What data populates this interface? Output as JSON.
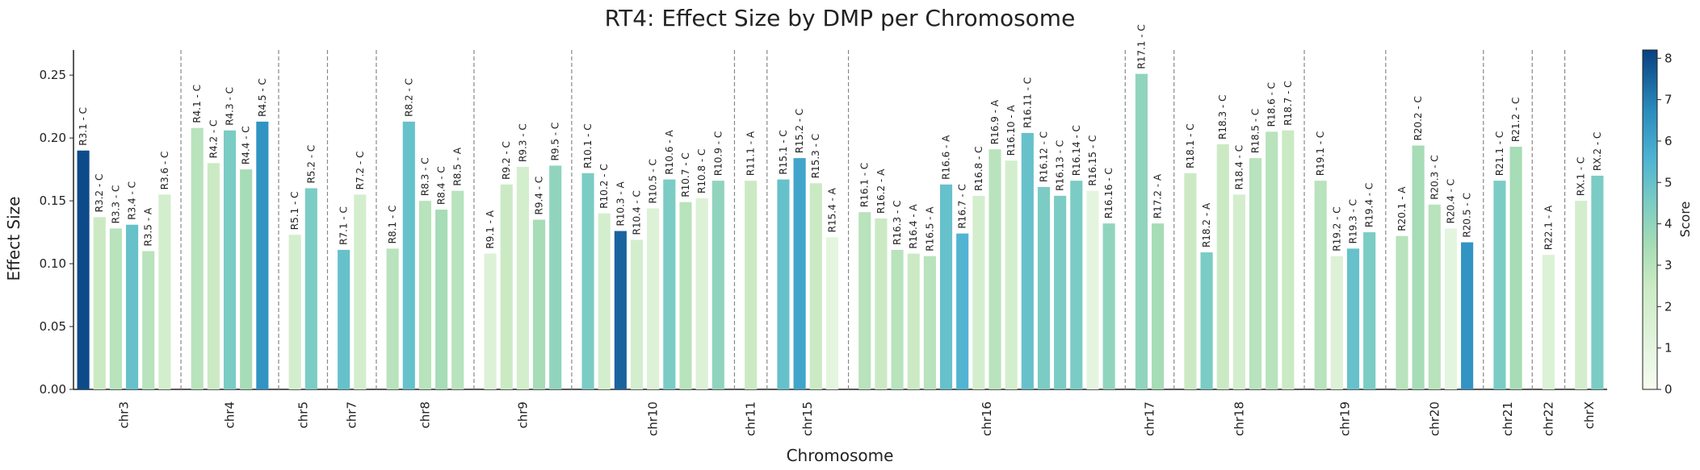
{
  "chart_data": {
    "type": "bar",
    "title": "RT4: Effect Size by DMP per Chromosome",
    "xlabel": "Chromosome",
    "ylabel": "Effect Size",
    "ylim": [
      0,
      0.27
    ],
    "yticks": [
      0.0,
      0.05,
      0.1,
      0.15,
      0.2,
      0.25
    ],
    "colorbar": {
      "label": "Score",
      "range": [
        0,
        8.2
      ],
      "ticks": [
        0,
        1,
        2,
        3,
        4,
        5,
        6,
        7,
        8
      ]
    },
    "groups": [
      {
        "chrom": "chr3",
        "bars": [
          {
            "label": "R3.1 - C",
            "value": 0.19,
            "score": 8
          },
          {
            "label": "R3.2 - C",
            "value": 0.137,
            "score": 2.5
          },
          {
            "label": "R3.3 - C",
            "value": 0.128,
            "score": 3
          },
          {
            "label": "R3.4 - C",
            "value": 0.131,
            "score": 5
          },
          {
            "label": "R3.5 - A",
            "value": 0.11,
            "score": 3
          },
          {
            "label": "R3.6 - C",
            "value": 0.155,
            "score": 2
          }
        ]
      },
      {
        "chrom": "chr4",
        "bars": [
          {
            "label": "R4.1 - C",
            "value": 0.208,
            "score": 3
          },
          {
            "label": "R4.2 - C",
            "value": 0.18,
            "score": 2.5
          },
          {
            "label": "R4.3 - C",
            "value": 0.206,
            "score": 4.5
          },
          {
            "label": "R4.4 - C",
            "value": 0.175,
            "score": 3.5
          },
          {
            "label": "R4.5 - C",
            "value": 0.213,
            "score": 6.5
          }
        ]
      },
      {
        "chrom": "chr5",
        "bars": [
          {
            "label": "R5.1 - C",
            "value": 0.123,
            "score": 2
          },
          {
            "label": "R5.2 - C",
            "value": 0.16,
            "score": 4.5
          }
        ]
      },
      {
        "chrom": "chr7",
        "bars": [
          {
            "label": "R7.1 - C",
            "value": 0.111,
            "score": 5
          },
          {
            "label": "R7.2 - C",
            "value": 0.155,
            "score": 2
          }
        ]
      },
      {
        "chrom": "chr8",
        "bars": [
          {
            "label": "R8.1 - C",
            "value": 0.112,
            "score": 3
          },
          {
            "label": "R8.2 - C",
            "value": 0.213,
            "score": 5
          },
          {
            "label": "R8.3 - C",
            "value": 0.15,
            "score": 3
          },
          {
            "label": "R8.4 - C",
            "value": 0.143,
            "score": 3.5
          },
          {
            "label": "R8.5 - A",
            "value": 0.158,
            "score": 3
          }
        ]
      },
      {
        "chrom": "chr9",
        "bars": [
          {
            "label": "R9.1 - A",
            "value": 0.108,
            "score": 1.5
          },
          {
            "label": "R9.2 - C",
            "value": 0.163,
            "score": 2.5
          },
          {
            "label": "R9.3 - C",
            "value": 0.177,
            "score": 2
          },
          {
            "label": "R9.4 - C",
            "value": 0.135,
            "score": 3.5
          },
          {
            "label": "R9.5 - C",
            "value": 0.178,
            "score": 4
          }
        ]
      },
      {
        "chrom": "chr10",
        "bars": [
          {
            "label": "R10.1 - C",
            "value": 0.172,
            "score": 4.5
          },
          {
            "label": "R10.2 - C",
            "value": 0.14,
            "score": 2
          },
          {
            "label": "R10.3 - A",
            "value": 0.126,
            "score": 7.5
          },
          {
            "label": "R10.4 - C",
            "value": 0.119,
            "score": 2
          },
          {
            "label": "R10.5 - C",
            "value": 0.144,
            "score": 1.5
          },
          {
            "label": "R10.6 - A",
            "value": 0.167,
            "score": 4.5
          },
          {
            "label": "R10.7 - C",
            "value": 0.149,
            "score": 3
          },
          {
            "label": "R10.8 - C",
            "value": 0.152,
            "score": 1.5
          },
          {
            "label": "R10.9 - C",
            "value": 0.166,
            "score": 4
          }
        ]
      },
      {
        "chrom": "chr11",
        "bars": [
          {
            "label": "R11.1 - A",
            "value": 0.166,
            "score": 2.5
          }
        ]
      },
      {
        "chrom": "chr15",
        "bars": [
          {
            "label": "R15.1 - C",
            "value": 0.167,
            "score": 5
          },
          {
            "label": "R15.2 - C",
            "value": 0.184,
            "score": 6
          },
          {
            "label": "R15.3 - C",
            "value": 0.164,
            "score": 2.5
          },
          {
            "label": "R15.4 - A",
            "value": 0.121,
            "score": 1
          }
        ]
      },
      {
        "chrom": "chr16",
        "bars": [
          {
            "label": "R16.1 - C",
            "value": 0.141,
            "score": 3
          },
          {
            "label": "R16.2 - A",
            "value": 0.136,
            "score": 2.5
          },
          {
            "label": "R16.3 - C",
            "value": 0.111,
            "score": 3
          },
          {
            "label": "R16.4 - A",
            "value": 0.108,
            "score": 2.5
          },
          {
            "label": "R16.5 - A",
            "value": 0.106,
            "score": 3
          },
          {
            "label": "R16.6 - A",
            "value": 0.163,
            "score": 5
          },
          {
            "label": "R16.7 - C",
            "value": 0.124,
            "score": 5.5
          },
          {
            "label": "R16.8 - C",
            "value": 0.154,
            "score": 2
          },
          {
            "label": "R16.9 - A",
            "value": 0.191,
            "score": 3
          },
          {
            "label": "R16.10 - A",
            "value": 0.182,
            "score": 2
          },
          {
            "label": "R16.11 - C",
            "value": 0.204,
            "score": 5
          },
          {
            "label": "R16.12 - C",
            "value": 0.161,
            "score": 4.5
          },
          {
            "label": "R16.13 - C",
            "value": 0.154,
            "score": 4.5
          },
          {
            "label": "R16.14 - C",
            "value": 0.166,
            "score": 4.5
          },
          {
            "label": "R16.15 - C",
            "value": 0.158,
            "score": 1
          },
          {
            "label": "R16.16 - C",
            "value": 0.132,
            "score": 4
          }
        ]
      },
      {
        "chrom": "chr17",
        "bars": [
          {
            "label": "R17.1 - C",
            "value": 0.251,
            "score": 4
          },
          {
            "label": "R17.2 - A",
            "value": 0.132,
            "score": 3.5
          }
        ]
      },
      {
        "chrom": "chr18",
        "bars": [
          {
            "label": "R18.1 - C",
            "value": 0.172,
            "score": 2.5
          },
          {
            "label": "R18.2 - A",
            "value": 0.109,
            "score": 4.5
          },
          {
            "label": "R18.3 - C",
            "value": 0.195,
            "score": 2.5
          },
          {
            "label": "R18.4 - C",
            "value": 0.155,
            "score": 2
          },
          {
            "label": "R18.5 - C",
            "value": 0.184,
            "score": 3
          },
          {
            "label": "R18.6 - C",
            "value": 0.205,
            "score": 3
          },
          {
            "label": "R18.7 - C",
            "value": 0.206,
            "score": 2.5
          }
        ]
      },
      {
        "chrom": "chr19",
        "bars": [
          {
            "label": "R19.1 - C",
            "value": 0.166,
            "score": 3
          },
          {
            "label": "R19.2 - C",
            "value": 0.106,
            "score": 1.5
          },
          {
            "label": "R19.3 - C",
            "value": 0.112,
            "score": 5
          },
          {
            "label": "R19.4 - C",
            "value": 0.125,
            "score": 4.5
          }
        ]
      },
      {
        "chrom": "chr20",
        "bars": [
          {
            "label": "R20.1 - A",
            "value": 0.122,
            "score": 3
          },
          {
            "label": "R20.2 - C",
            "value": 0.194,
            "score": 3.5
          },
          {
            "label": "R20.3 - C",
            "value": 0.147,
            "score": 3
          },
          {
            "label": "R20.4 - C",
            "value": 0.128,
            "score": 1
          },
          {
            "label": "R20.5 - C",
            "value": 0.117,
            "score": 6.5
          }
        ]
      },
      {
        "chrom": "chr21",
        "bars": [
          {
            "label": "R21.1 - C",
            "value": 0.166,
            "score": 4.5
          },
          {
            "label": "R21.2 - C",
            "value": 0.193,
            "score": 3.5
          }
        ]
      },
      {
        "chrom": "chr22",
        "bars": [
          {
            "label": "R22.1 - A",
            "value": 0.107,
            "score": 1.5
          }
        ]
      },
      {
        "chrom": "chrX",
        "bars": [
          {
            "label": "RX.1 - C",
            "value": 0.15,
            "score": 2
          },
          {
            "label": "RX.2 - C",
            "value": 0.17,
            "score": 4.5
          }
        ]
      }
    ]
  }
}
